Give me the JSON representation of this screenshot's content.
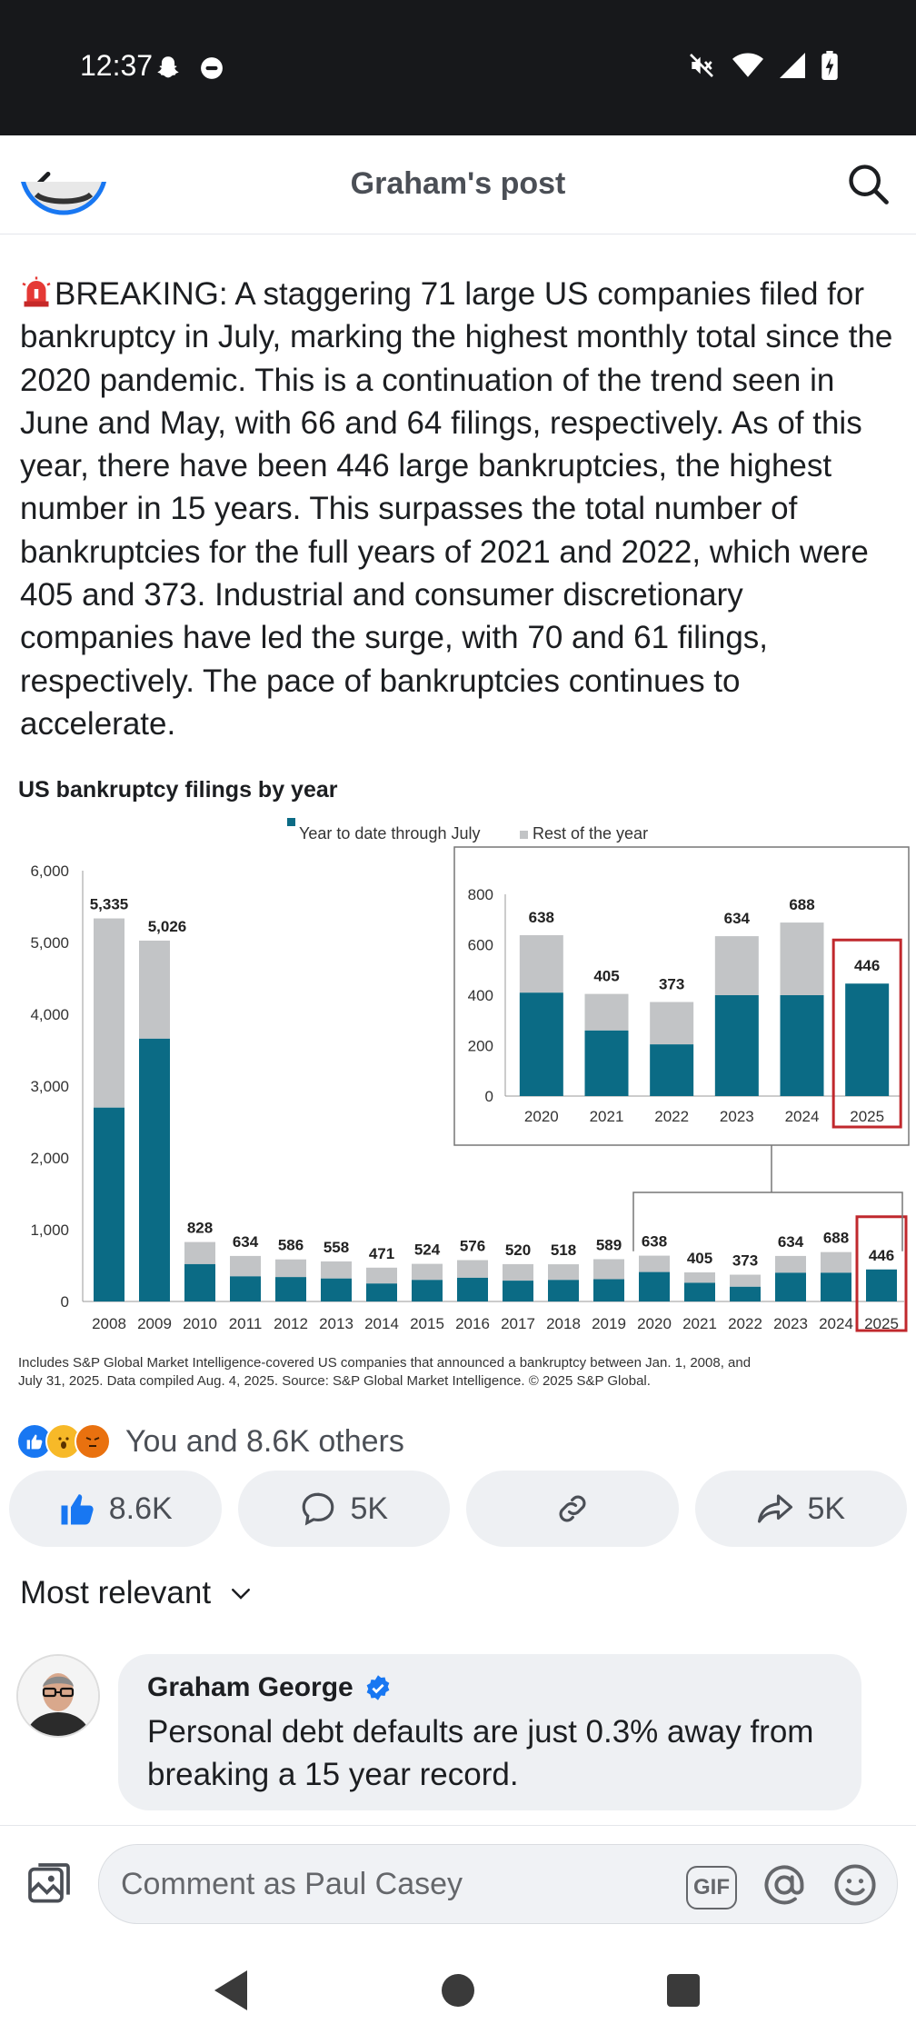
{
  "status_bar": {
    "time": "12:37"
  },
  "header": {
    "title": "Graham's post"
  },
  "post": {
    "text": "BREAKING: A staggering 71 large US companies filed for bankruptcy in July, marking the highest monthly total since the 2020 pandemic. This is a continuation of the trend seen in June and May, with 66 and 64 filings, respectively. As of this year, there have been 446 large bankruptcies, the highest number in 15 years. This surpasses the total number of bankruptcies for the full years of 2021 and 2022, which were 405 and 373. Industrial and consumer discretionary companies have led the surge, with 70 and 61 filings, respectively. The pace of bankruptcies continues to accelerate."
  },
  "chart_data": {
    "type": "bar",
    "title": "US bankruptcy filings by year",
    "legend": [
      "Year to date through July",
      "Rest of the year"
    ],
    "legend_position": "top",
    "colors": {
      "ytd": "#0b6b85",
      "rest": "#c2c4c6",
      "highlight": "#c0282d"
    },
    "categories": [
      "2008",
      "2009",
      "2010",
      "2011",
      "2012",
      "2013",
      "2014",
      "2015",
      "2016",
      "2017",
      "2018",
      "2019",
      "2020",
      "2021",
      "2022",
      "2023",
      "2024",
      "2025"
    ],
    "totals": [
      5335,
      5026,
      828,
      634,
      586,
      558,
      471,
      524,
      576,
      520,
      518,
      589,
      638,
      405,
      373,
      634,
      688,
      446
    ],
    "ytd": [
      2700,
      3660,
      520,
      350,
      340,
      320,
      250,
      300,
      330,
      290,
      300,
      310,
      410,
      260,
      205,
      400,
      400,
      446
    ],
    "ylim": [
      0,
      6000
    ],
    "yticks": [
      0,
      1000,
      2000,
      3000,
      4000,
      5000,
      6000
    ],
    "ytick_labels": [
      "0",
      "1,000",
      "2,000",
      "3,000",
      "4,000",
      "5,000",
      "6,000"
    ],
    "total_labels": [
      "5,335",
      "5,026",
      "828",
      "634",
      "586",
      "558",
      "471",
      "524",
      "576",
      "520",
      "518",
      "589",
      "638",
      "405",
      "373",
      "634",
      "688",
      "446"
    ],
    "inset": {
      "categories": [
        "2020",
        "2021",
        "2022",
        "2023",
        "2024",
        "2025"
      ],
      "totals": [
        638,
        405,
        373,
        634,
        688,
        446
      ],
      "ytd": [
        410,
        260,
        205,
        400,
        400,
        446
      ],
      "ylim": [
        0,
        800
      ],
      "yticks": [
        0,
        200,
        400,
        600,
        800
      ],
      "ytick_labels": [
        "0",
        "200",
        "400",
        "600",
        "800"
      ],
      "total_labels": [
        "638",
        "405",
        "373",
        "634",
        "688",
        "446"
      ]
    },
    "footnote_1": "Includes S&P Global Market Intelligence-covered US companies that announced a bankruptcy between Jan. 1, 2008, and",
    "footnote_2": "July 31, 2025. Data compiled Aug. 4, 2025. Source: S&P Global Market Intelligence. © 2025 S&P Global."
  },
  "reactions": {
    "text": "You and 8.6K others"
  },
  "actions": {
    "like_count": "8.6K",
    "comment_count": "5K",
    "share_count": "5K"
  },
  "sort": {
    "label": "Most relevant"
  },
  "comment": {
    "author": "Graham George",
    "text": "Personal debt defaults are just 0.3% away from breaking a 15 year record."
  },
  "composer": {
    "placeholder": "Comment as Paul Casey",
    "gif_label": "GIF"
  }
}
